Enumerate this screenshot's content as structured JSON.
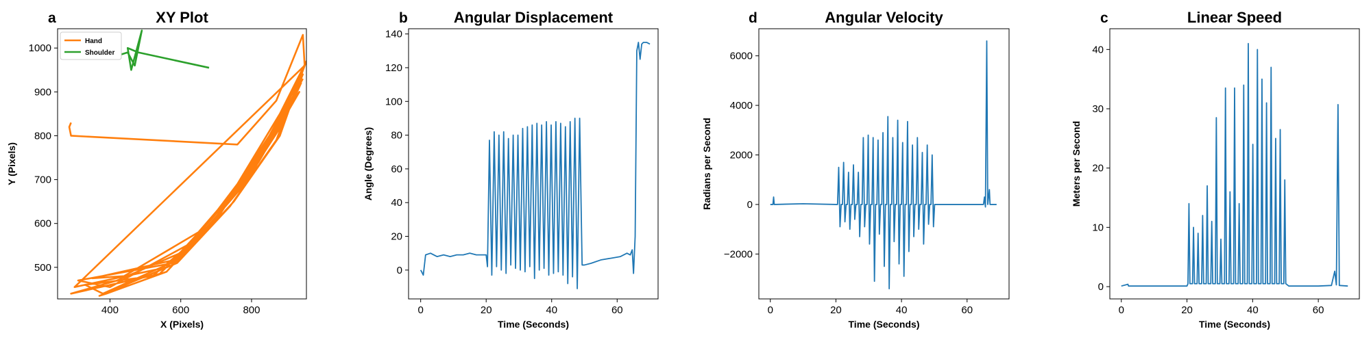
{
  "chart_data": [
    {
      "type": "line",
      "panel_label": "a",
      "title": "XY Plot",
      "x_label": "X (Pixels)",
      "y_label": "Y (Pixels)",
      "xlim": [
        252,
        955
      ],
      "ylim": [
        428,
        1044
      ],
      "xticks": [
        400,
        600,
        800
      ],
      "yticks": [
        500,
        600,
        700,
        800,
        900,
        1000
      ],
      "legend": "upper left",
      "series": [
        {
          "name": "Hand",
          "color": "#ff7f0e",
          "x": [
            290,
            285,
            290,
            760,
            870,
            945,
            950,
            300,
            560,
            720,
            850,
            945,
            890,
            770,
            620,
            420,
            290,
            540,
            700,
            830,
            940,
            900,
            790,
            640,
            400,
            310,
            580,
            740,
            870,
            950,
            880,
            750,
            600,
            380,
            330,
            520,
            680,
            820,
            935,
            910,
            800,
            650,
            440,
            350,
            600,
            760,
            880,
            955,
            870,
            740,
            590,
            370,
            390,
            560,
            710,
            840,
            945
          ],
          "values": [
            830,
            820,
            800,
            780,
            880,
            1030,
            960,
            455,
            500,
            640,
            800,
            940,
            830,
            680,
            540,
            470,
            440,
            485,
            610,
            760,
            920,
            850,
            700,
            560,
            455,
            470,
            510,
            660,
            820,
            960,
            800,
            650,
            520,
            440,
            460,
            480,
            590,
            740,
            900,
            870,
            720,
            580,
            480,
            475,
            520,
            690,
            850,
            970,
            790,
            640,
            510,
            435,
            440,
            490,
            620,
            780,
            930
          ]
        },
        {
          "name": "Shoulder",
          "color": "#2ca02c",
          "x": [
            420,
            430,
            450,
            470,
            490,
            460,
            450,
            480,
            680
          ],
          "values": [
            980,
            985,
            990,
            960,
            1040,
            950,
            1000,
            990,
            955
          ]
        }
      ]
    },
    {
      "type": "line",
      "panel_label": "b",
      "title": "Angular Displacement",
      "x_label": "Time (Seconds)",
      "y_label": "Angle (Degrees)",
      "xlim": [
        -3.7,
        72.5
      ],
      "ylim": [
        -17.1,
        143.1
      ],
      "xticks": [
        0,
        20,
        40,
        60
      ],
      "yticks": [
        0,
        20,
        40,
        60,
        80,
        100,
        120,
        140
      ],
      "series": [
        {
          "color": "#1f77b4",
          "x": [
            0,
            0.3,
            0.8,
            1.5,
            3,
            5,
            7,
            9,
            11,
            13,
            15,
            17,
            19,
            20,
            20.4,
            21.0,
            21.72,
            22.45,
            23.17,
            23.9,
            24.62,
            25.35,
            26.07,
            26.8,
            27.52,
            28.25,
            28.97,
            29.7,
            30.42,
            31.15,
            31.87,
            32.6,
            33.32,
            34.05,
            34.77,
            35.5,
            36.22,
            36.95,
            37.67,
            38.4,
            39.12,
            39.85,
            40.57,
            41.3,
            42.02,
            42.75,
            43.47,
            44.2,
            44.92,
            45.65,
            46.37,
            47.1,
            47.82,
            48.55,
            49.3,
            50,
            52,
            55,
            58,
            61,
            63,
            64,
            64.6,
            65,
            65.5,
            66,
            66.5,
            67,
            67.5,
            68,
            69,
            70
          ],
          "values": [
            0,
            -1,
            -3,
            9,
            10,
            8,
            9,
            8,
            9,
            9,
            10,
            9,
            9,
            9,
            2,
            77,
            -3,
            82,
            2,
            80,
            0,
            82,
            -2,
            78,
            3,
            80,
            1,
            80,
            0,
            84,
            -1,
            85,
            2,
            86,
            -5,
            87,
            0,
            86,
            1,
            88,
            -3,
            86,
            -2,
            88,
            -1,
            87,
            -3,
            85,
            -8,
            88,
            -4,
            90,
            -11,
            90,
            3,
            3,
            4,
            6,
            7,
            8,
            10,
            9,
            12,
            -2,
            20,
            130,
            135,
            125,
            134,
            135,
            135,
            134
          ]
        }
      ]
    },
    {
      "type": "line",
      "panel_label": "d",
      "title": "Angular Velocity",
      "x_label": "Time (Seconds)",
      "y_label": "Radians per Second",
      "xlim": [
        -3.5,
        72.8
      ],
      "ylim": [
        -3812,
        7094
      ],
      "xticks": [
        0,
        20,
        40,
        60
      ],
      "yticks": [
        {
          "value": -2000,
          "label": "−2000"
        },
        0,
        2000,
        4000,
        6000
      ],
      "series": [
        {
          "color": "#1f77b4",
          "x": [
            0,
            0.8,
            1.0,
            1.2,
            10,
            20,
            20.5,
            20.85,
            21.25,
            21.6,
            22,
            22.35,
            22.75,
            23.1,
            23.5,
            23.85,
            24.25,
            24.6,
            25,
            25.35,
            25.75,
            26.1,
            26.5,
            26.85,
            27.25,
            27.6,
            28,
            28.35,
            28.75,
            29.1,
            29.5,
            29.85,
            30.25,
            30.6,
            31,
            31.35,
            31.75,
            32.1,
            32.5,
            32.85,
            33.25,
            33.6,
            34,
            34.35,
            34.75,
            35.1,
            35.5,
            35.85,
            36.25,
            36.6,
            37,
            37.35,
            37.75,
            38.1,
            38.5,
            38.85,
            39.25,
            39.6,
            40,
            40.35,
            40.75,
            41.1,
            41.5,
            41.85,
            42.25,
            42.6,
            43,
            43.35,
            43.75,
            44.1,
            44.5,
            44.85,
            45.25,
            45.6,
            46,
            46.35,
            46.75,
            47.1,
            47.5,
            47.85,
            48.25,
            48.6,
            49,
            49.35,
            49.75,
            50.1,
            55,
            60,
            65,
            65.3,
            65.6,
            66,
            66.3,
            66.8,
            67,
            69
          ],
          "values": [
            0,
            0,
            300,
            0,
            30,
            0,
            0,
            1500,
            -900,
            0,
            0,
            1700,
            -700,
            0,
            0,
            1300,
            -1000,
            0,
            0,
            1600,
            -600,
            0,
            0,
            1300,
            -1300,
            0,
            0,
            2700,
            -900,
            0,
            0,
            2800,
            -1600,
            0,
            0,
            2700,
            -3100,
            0,
            0,
            2600,
            -1200,
            0,
            0,
            2900,
            -2500,
            0,
            0,
            3550,
            -3400,
            0,
            0,
            2700,
            -1500,
            0,
            0,
            3400,
            -2400,
            0,
            0,
            2500,
            -2900,
            0,
            0,
            3350,
            -1900,
            0,
            0,
            2400,
            -1300,
            0,
            0,
            2700,
            -1000,
            0,
            0,
            2100,
            -1600,
            0,
            0,
            2400,
            -800,
            0,
            0,
            2000,
            -900,
            0,
            0,
            0,
            0,
            300,
            -100,
            6600,
            0,
            600,
            0,
            0
          ]
        }
      ]
    },
    {
      "type": "line",
      "panel_label": "c",
      "title": "Linear Speed",
      "x_label": "Time (Seconds)",
      "y_label": "Meters per Second",
      "xlim": [
        -3.5,
        72.5
      ],
      "ylim": [
        -2.07,
        43.5
      ],
      "xticks": [
        0,
        20,
        40,
        60
      ],
      "yticks": [
        0,
        10,
        20,
        30,
        40
      ],
      "series": [
        {
          "color": "#1f77b4",
          "x": [
            0,
            2,
            2.2,
            10,
            20,
            20.3,
            20.6,
            20.9,
            21.69,
            21.99,
            22.29,
            23.08,
            23.38,
            23.68,
            24.47,
            24.77,
            25.07,
            25.86,
            26.16,
            26.46,
            27.25,
            27.55,
            27.85,
            28.64,
            28.94,
            29.24,
            30.03,
            30.33,
            30.63,
            31.42,
            31.72,
            32.02,
            32.81,
            33.11,
            33.41,
            34.2,
            34.5,
            34.8,
            35.59,
            35.89,
            36.19,
            36.98,
            37.28,
            37.58,
            38.37,
            38.67,
            38.97,
            39.76,
            40.06,
            40.36,
            41.15,
            41.45,
            41.75,
            42.54,
            42.84,
            43.14,
            43.93,
            44.23,
            44.53,
            45.32,
            45.62,
            45.92,
            46.71,
            47.01,
            47.31,
            48.1,
            48.4,
            48.7,
            49.49,
            49.79,
            50.09,
            51,
            60,
            64,
            65,
            65.5,
            66,
            66.4,
            69
          ],
          "values": [
            0.1,
            0.4,
            0.1,
            0.1,
            0.1,
            0.5,
            14,
            0.5,
            0.5,
            10,
            0.5,
            0.5,
            9,
            0.5,
            0.5,
            12,
            0.5,
            0.5,
            17,
            0.5,
            0.5,
            11,
            0.5,
            0.5,
            28.5,
            0.5,
            0.5,
            8,
            0.5,
            0.5,
            33.5,
            0.5,
            0.5,
            16,
            0.5,
            0.5,
            33.5,
            0.5,
            0.5,
            14,
            0.5,
            0.5,
            34,
            0.5,
            0.5,
            41,
            0.5,
            0.5,
            24,
            0.5,
            0.5,
            40,
            0.5,
            0.5,
            35,
            0.5,
            0.5,
            31,
            0.5,
            0.5,
            37,
            0.5,
            0.5,
            25,
            0.5,
            0.5,
            26.5,
            0.5,
            0.5,
            18,
            0.5,
            0.1,
            0.1,
            0.2,
            2.6,
            0.3,
            30.7,
            0.2,
            0.1
          ]
        }
      ]
    }
  ]
}
